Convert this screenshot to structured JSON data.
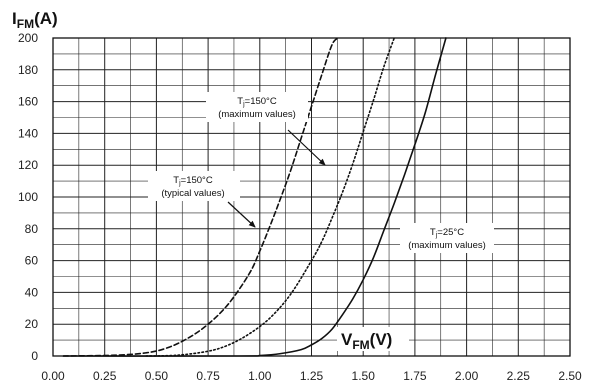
{
  "chart_data": {
    "type": "line",
    "ylabel": {
      "main": "I",
      "sub": "FM",
      "unit": "(A)"
    },
    "xlabel": {
      "main": "V",
      "sub": "FM",
      "unit": "(V)"
    },
    "xlim": [
      0,
      2.5
    ],
    "ylim": [
      0,
      200
    ],
    "x_ticks": [
      "0.00",
      "0.25",
      "0.50",
      "0.75",
      "1.00",
      "1.25",
      "1.50",
      "1.75",
      "2.00",
      "2.25",
      "2.50"
    ],
    "y_ticks": [
      "0",
      "20",
      "40",
      "60",
      "80",
      "100",
      "120",
      "140",
      "160",
      "180",
      "200"
    ],
    "grid": true,
    "series": [
      {
        "name": "Tj=150°C (typical values)",
        "style": "dashed",
        "color": "#111111",
        "x": [
          0.05,
          0.3,
          0.45,
          0.55,
          0.65,
          0.75,
          0.85,
          0.95,
          1.0,
          1.05,
          1.1,
          1.15,
          1.2,
          1.25,
          1.3,
          1.35,
          1.38
        ],
        "y": [
          0,
          0.5,
          2,
          5,
          11,
          20,
          33,
          52,
          66,
          82,
          99,
          117,
          137,
          157,
          177,
          196,
          200
        ]
      },
      {
        "name": "Tj=150°C (maximum values)",
        "style": "dotted",
        "color": "#111111",
        "x": [
          0.45,
          0.6,
          0.75,
          0.85,
          0.95,
          1.05,
          1.15,
          1.25,
          1.3,
          1.35,
          1.4,
          1.45,
          1.5,
          1.55,
          1.6,
          1.65
        ],
        "y": [
          0,
          0.5,
          3,
          7,
          14,
          24,
          39,
          60,
          72,
          87,
          103,
          121,
          141,
          161,
          182,
          200
        ]
      },
      {
        "name": "Tj=25°C (maximum values)",
        "style": "solid",
        "color": "#111111",
        "x": [
          0.05,
          0.9,
          1.0,
          1.1,
          1.2,
          1.25,
          1.3,
          1.35,
          1.4,
          1.45,
          1.5,
          1.55,
          1.6,
          1.65,
          1.7,
          1.75,
          1.8,
          1.85,
          1.9
        ],
        "y": [
          0,
          0,
          0.3,
          1.5,
          4,
          7,
          11,
          17,
          26,
          36,
          48,
          62,
          79,
          96,
          114,
          133,
          153,
          177,
          200
        ]
      }
    ],
    "annotations": [
      {
        "lines": [
          {
            "main": "T",
            "sub": "j",
            "rest": "=150°C"
          },
          {
            "text": "(maximum values)"
          }
        ]
      },
      {
        "lines": [
          {
            "main": "T",
            "sub": "j",
            "rest": "=150°C"
          },
          {
            "text": "(typical values)"
          }
        ]
      },
      {
        "lines": [
          {
            "main": "T",
            "sub": "j",
            "rest": "=25°C"
          },
          {
            "text": "(maximum values)"
          }
        ]
      }
    ]
  }
}
